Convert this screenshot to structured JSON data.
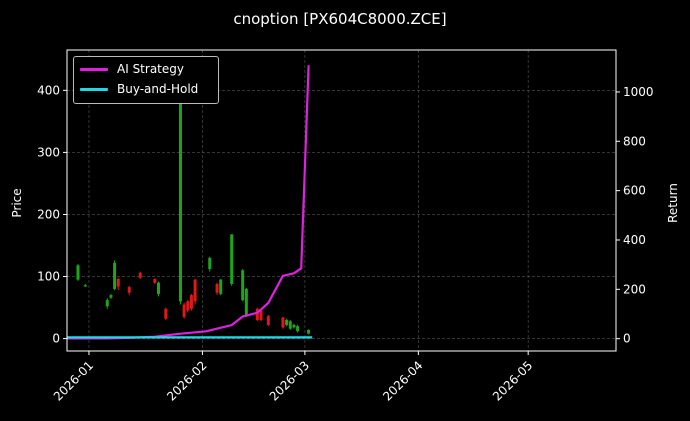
{
  "chart_data": {
    "type": "candlestick_with_lines",
    "title": "cnoption [PX604C8000.ZCE]",
    "ylabel_left": "Price",
    "ylabel_right": "Return",
    "xlim": [
      "2025-12-26",
      "2026-05-25"
    ],
    "ylim_left": [
      -20,
      465
    ],
    "ylim_right": [
      -50,
      1170
    ],
    "y_ticks_left": [
      0,
      100,
      200,
      300,
      400
    ],
    "y_ticks_right": [
      0,
      200,
      400,
      600,
      800,
      1000
    ],
    "x_ticks": [
      "2026-01",
      "2026-02",
      "2026-03",
      "2026-04",
      "2026-05"
    ],
    "grid": true,
    "legend_position": "top-left",
    "legend": [
      {
        "label": "AI Strategy",
        "color": "#e020e0"
      },
      {
        "label": "Buy-and-Hold",
        "color": "#22d8e8"
      }
    ],
    "candles": [
      {
        "date": "2025-12-29",
        "open": 95,
        "close": 118,
        "high": 120,
        "low": 93
      },
      {
        "date": "2025-12-31",
        "open": 84,
        "close": 86,
        "high": 88,
        "low": 83
      },
      {
        "date": "2026-01-06",
        "open": 52,
        "close": 62,
        "high": 65,
        "low": 48
      },
      {
        "date": "2026-01-07",
        "open": 66,
        "close": 70,
        "high": 72,
        "low": 64
      },
      {
        "date": "2026-01-08",
        "open": 80,
        "close": 122,
        "high": 126,
        "low": 78
      },
      {
        "date": "2026-01-09",
        "open": 96,
        "close": 84,
        "high": 98,
        "low": 78
      },
      {
        "date": "2026-01-12",
        "open": 83,
        "close": 74,
        "high": 85,
        "low": 70
      },
      {
        "date": "2026-01-15",
        "open": 106,
        "close": 98,
        "high": 108,
        "low": 96
      },
      {
        "date": "2026-01-19",
        "open": 96,
        "close": 90,
        "high": 97,
        "low": 88
      },
      {
        "date": "2026-01-20",
        "open": 72,
        "close": 90,
        "high": 92,
        "low": 68
      },
      {
        "date": "2026-01-22",
        "open": 48,
        "close": 32,
        "high": 50,
        "low": 30
      },
      {
        "date": "2026-01-26",
        "open": 60,
        "close": 440,
        "high": 440,
        "low": 55
      },
      {
        "date": "2026-01-27",
        "open": 55,
        "close": 35,
        "high": 58,
        "low": 32
      },
      {
        "date": "2026-01-28",
        "open": 60,
        "close": 45,
        "high": 62,
        "low": 42
      },
      {
        "date": "2026-01-29",
        "open": 70,
        "close": 48,
        "high": 72,
        "low": 45
      },
      {
        "date": "2026-01-30",
        "open": 95,
        "close": 60,
        "high": 96,
        "low": 55
      },
      {
        "date": "2026-02-03",
        "open": 112,
        "close": 130,
        "high": 132,
        "low": 108
      },
      {
        "date": "2026-02-05",
        "open": 88,
        "close": 74,
        "high": 90,
        "low": 70
      },
      {
        "date": "2026-02-06",
        "open": 72,
        "close": 95,
        "high": 96,
        "low": 70
      },
      {
        "date": "2026-02-09",
        "open": 88,
        "close": 168,
        "high": 168,
        "low": 85
      },
      {
        "date": "2026-02-12",
        "open": 62,
        "close": 110,
        "high": 112,
        "low": 60
      },
      {
        "date": "2026-02-13",
        "open": 38,
        "close": 80,
        "high": 82,
        "low": 35
      },
      {
        "date": "2026-02-16",
        "open": 48,
        "close": 30,
        "high": 50,
        "low": 28
      },
      {
        "date": "2026-02-17",
        "open": 45,
        "close": 30,
        "high": 46,
        "low": 28
      },
      {
        "date": "2026-02-19",
        "open": 36,
        "close": 22,
        "high": 38,
        "low": 20
      },
      {
        "date": "2026-02-23",
        "open": 34,
        "close": 18,
        "high": 35,
        "low": 16
      },
      {
        "date": "2026-02-24",
        "open": 22,
        "close": 30,
        "high": 32,
        "low": 20
      },
      {
        "date": "2026-02-25",
        "open": 16,
        "close": 28,
        "high": 30,
        "low": 14
      },
      {
        "date": "2026-02-26",
        "open": 18,
        "close": 22,
        "high": 24,
        "low": 16
      },
      {
        "date": "2026-02-27",
        "open": 12,
        "close": 20,
        "high": 22,
        "low": 10
      },
      {
        "date": "2026-03-02",
        "open": 8,
        "close": 14,
        "high": 15,
        "low": 7
      }
    ],
    "series": [
      {
        "name": "AI Strategy",
        "color": "#e020e0",
        "axis": "right",
        "x": [
          "2025-12-26",
          "2026-01-06",
          "2026-01-12",
          "2026-01-19",
          "2026-01-26",
          "2026-02-02",
          "2026-02-09",
          "2026-02-12",
          "2026-02-16",
          "2026-02-19",
          "2026-02-23",
          "2026-02-26",
          "2026-02-28",
          "2026-03-02"
        ],
        "values": [
          1,
          1,
          3,
          8,
          20,
          30,
          55,
          90,
          105,
          145,
          255,
          265,
          285,
          1108
        ]
      },
      {
        "name": "Buy-and-Hold",
        "color": "#22d8e8",
        "axis": "right",
        "x": [
          "2025-12-26",
          "2026-03-03"
        ],
        "values": [
          5,
          5
        ]
      }
    ]
  }
}
